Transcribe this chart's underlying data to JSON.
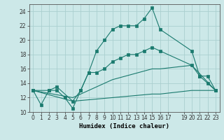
{
  "xlabel": "Humidex (Indice chaleur)",
  "background_color": "#cce8e8",
  "grid_color": "#aacfcf",
  "line_color": "#1a7a6e",
  "xlim": [
    -0.5,
    23.5
  ],
  "ylim": [
    10,
    25
  ],
  "yticks": [
    10,
    12,
    14,
    16,
    18,
    20,
    22,
    24
  ],
  "xticks": [
    0,
    1,
    2,
    3,
    4,
    5,
    6,
    7,
    8,
    9,
    10,
    11,
    12,
    13,
    14,
    15,
    16,
    17,
    19,
    20,
    21,
    22,
    23
  ],
  "line1_x": [
    0,
    1,
    2,
    3,
    4,
    5,
    6,
    7,
    8,
    9,
    10,
    11,
    12,
    13,
    14,
    15,
    16,
    20,
    21,
    22,
    23
  ],
  "line1_y": [
    13,
    11,
    13,
    13,
    12,
    10.5,
    13,
    15.5,
    18.5,
    20,
    21.5,
    22,
    22,
    22,
    23,
    24.5,
    21.5,
    18.5,
    15,
    15,
    13
  ],
  "line2_x": [
    0,
    2,
    3,
    5,
    6,
    7,
    8,
    9,
    10,
    11,
    12,
    13,
    14,
    15,
    16,
    20,
    21,
    22,
    23
  ],
  "line2_y": [
    13,
    13,
    13.5,
    11.5,
    13,
    15.5,
    15.5,
    16,
    17,
    17.5,
    18,
    18,
    18.5,
    19,
    18.5,
    16.5,
    15,
    14,
    13
  ],
  "line3_x": [
    0,
    5,
    10,
    15,
    16,
    20,
    23
  ],
  "line3_y": [
    13,
    12,
    14.5,
    16,
    16,
    16.5,
    13
  ],
  "line4_x": [
    0,
    5,
    10,
    15,
    16,
    20,
    23
  ],
  "line4_y": [
    13,
    11.5,
    12,
    12.5,
    12.5,
    13,
    13
  ]
}
